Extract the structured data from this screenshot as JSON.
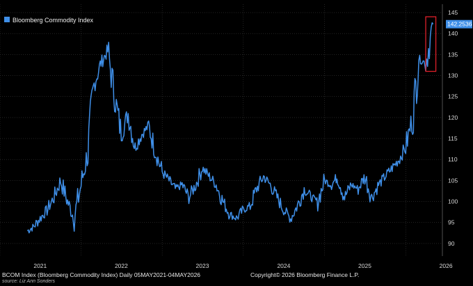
{
  "chart_data": {
    "type": "line",
    "title": "",
    "xlabel": "",
    "ylabel": "",
    "ylim": [
      87,
      147
    ],
    "y_ticks": [
      90,
      95,
      100,
      105,
      110,
      115,
      120,
      125,
      130,
      135,
      140,
      145
    ],
    "x_ticks": [
      "2021",
      "2022",
      "2023",
      "2024",
      "2025",
      "2026"
    ],
    "legend": {
      "label": "Bloomberg Commodity Index",
      "position": "top-left"
    },
    "last_value_label": "142.2536",
    "grid": true,
    "series": [
      {
        "name": "Bloomberg Commodity Index",
        "color": "#3f8fe8",
        "x": [
          "2021-05-05",
          "2021-06-01",
          "2021-07-01",
          "2021-08-01",
          "2021-09-01",
          "2021-10-01",
          "2021-11-01",
          "2021-12-01",
          "2022-01-01",
          "2022-02-01",
          "2022-03-01",
          "2022-04-01",
          "2022-05-01",
          "2022-06-01",
          "2022-07-01",
          "2022-08-01",
          "2022-09-01",
          "2022-10-01",
          "2022-11-01",
          "2022-12-01",
          "2023-01-01",
          "2023-02-01",
          "2023-03-01",
          "2023-04-01",
          "2023-05-01",
          "2023-06-01",
          "2023-07-01",
          "2023-08-01",
          "2023-09-01",
          "2023-10-01",
          "2023-11-01",
          "2023-12-01",
          "2024-01-01",
          "2024-02-01",
          "2024-03-01",
          "2024-04-01",
          "2024-05-01",
          "2024-06-01",
          "2024-07-01",
          "2024-08-01",
          "2024-09-01",
          "2024-10-01",
          "2024-11-01",
          "2024-12-01",
          "2025-01-01",
          "2025-02-01",
          "2025-03-01",
          "2025-04-01",
          "2025-05-01",
          "2025-06-01",
          "2025-07-01",
          "2025-08-01",
          "2025-09-01",
          "2025-10-01",
          "2025-11-01",
          "2025-12-01",
          "2026-01-01",
          "2026-02-01",
          "2026-03-01",
          "2026-04-01",
          "2026-05-04"
        ],
        "values": [
          93,
          94,
          96,
          98,
          101,
          105,
          100,
          96,
          104,
          112,
          128,
          133,
          136,
          125,
          116,
          121,
          113,
          116,
          118,
          112,
          107,
          105,
          103,
          104,
          101,
          104,
          108,
          106,
          104,
          100,
          97,
          96,
          98,
          99,
          103,
          106,
          104,
          101,
          98,
          96,
          99,
          103,
          101,
          100,
          105,
          104,
          106,
          101,
          104,
          103,
          106,
          101,
          104,
          106,
          108,
          110,
          113,
          120,
          134,
          133,
          142.25
        ]
      }
    ],
    "highlight_box": {
      "from": "2026-04-01",
      "to": "2026-05-04",
      "ymin": 131,
      "ymax": 144,
      "color": "#e0202a"
    }
  },
  "footer": {
    "description": "BCOM Index (Bloomberg Commodity Index) Daily 05MAY2021-04MAY2026",
    "copyright": "Copyright© 2026 Bloomberg Finance L.P.",
    "source": "source: Liz Ann Sonders"
  }
}
